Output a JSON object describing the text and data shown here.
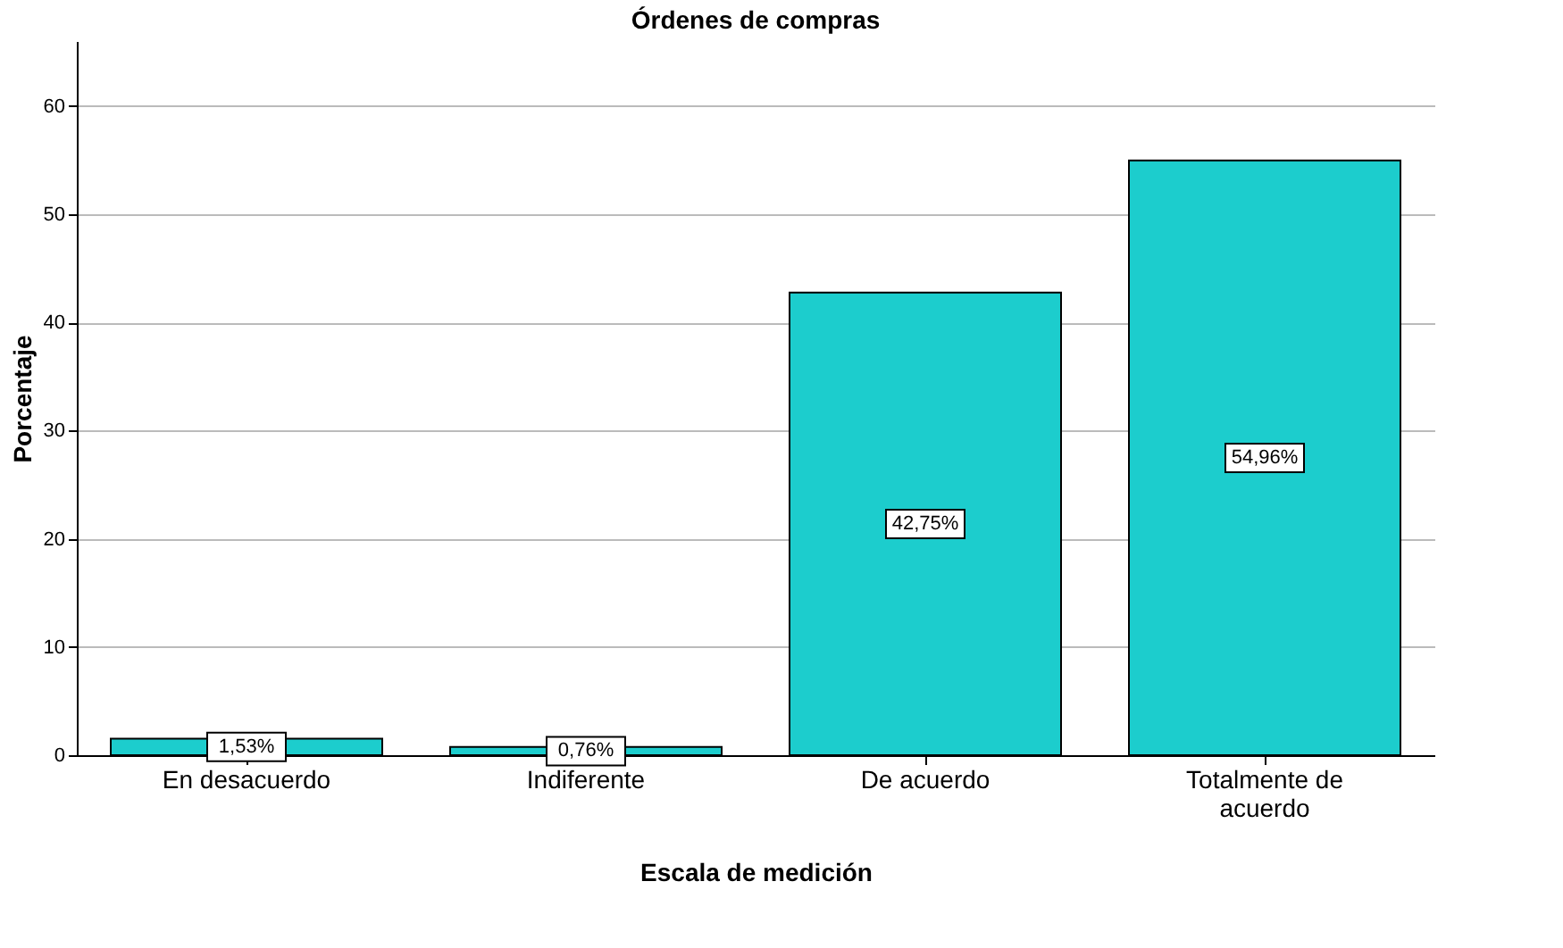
{
  "chart_data": {
    "type": "bar",
    "title": "Órdenes de compras",
    "xlabel": "Escala de medición",
    "ylabel": "Porcentaje",
    "categories": [
      "En desacuerdo",
      "Indiferente",
      "De acuerdo",
      "Totalmente de acuerdo"
    ],
    "values": [
      1.53,
      0.76,
      42.75,
      54.96
    ],
    "value_labels": [
      "1,53%",
      "0,76%",
      "42,75%",
      "54,96%"
    ],
    "color": "#1ccdcd",
    "ylim": [
      0,
      66
    ],
    "yticks": [
      0,
      10,
      20,
      30,
      40,
      50,
      60
    ],
    "grid": "y"
  }
}
